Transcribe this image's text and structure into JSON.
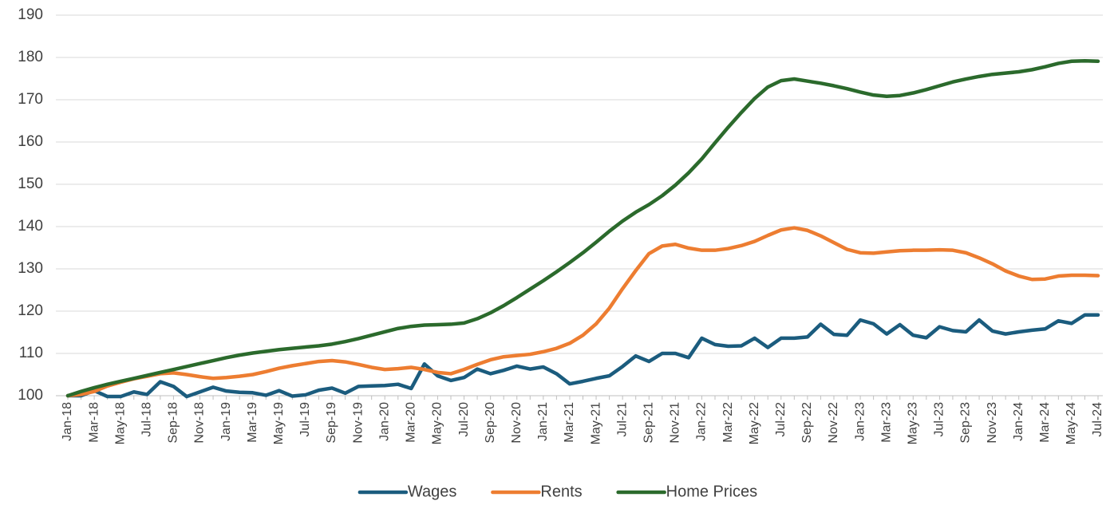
{
  "chart_data": {
    "type": "line",
    "categories": [
      "Jan-18",
      null,
      "Mar-18",
      null,
      "May-18",
      null,
      "Jul-18",
      null,
      "Sep-18",
      null,
      "Nov-18",
      null,
      "Jan-19",
      null,
      "Mar-19",
      null,
      "May-19",
      null,
      "Jul-19",
      null,
      "Sep-19",
      null,
      "Nov-19",
      null,
      "Jan-20",
      null,
      "Mar-20",
      null,
      "May-20",
      null,
      "Jul-20",
      null,
      "Sep-20",
      null,
      "Nov-20",
      null,
      "Jan-21",
      null,
      "Mar-21",
      null,
      "May-21",
      null,
      "Jul-21",
      null,
      "Sep-21",
      null,
      "Nov-21",
      null,
      "Jan-22",
      null,
      "Mar-22",
      null,
      "May-22",
      null,
      "Jul-22",
      null,
      "Sep-22",
      null,
      "Nov-22",
      null,
      "Jan-23",
      null,
      "Mar-23",
      null,
      "May-23",
      null,
      "Jul-23",
      null,
      "Sep-23",
      null,
      "Nov-23",
      null,
      "Jan-24",
      null,
      "Mar-24",
      null,
      "May-24",
      null,
      "Jul-24"
    ],
    "series": [
      {
        "name": "Wages",
        "color": "#1b5c7e",
        "values": [
          100,
          100,
          101.2,
          99.8,
          99.8,
          100.9,
          100.3,
          103.3,
          102.2,
          99.8,
          100.9,
          102,
          101.1,
          100.8,
          100.7,
          100.1,
          101.2,
          99.9,
          100.2,
          101.3,
          101.8,
          100.6,
          102.2,
          102.3,
          102.4,
          102.7,
          101.7,
          107.5,
          104.7,
          103.6,
          104.3,
          106.3,
          105.2,
          106,
          107,
          106.3,
          106.8,
          105.2,
          102.8,
          103.4,
          104.1,
          104.7,
          106.9,
          109.4,
          108.1,
          110,
          110,
          109,
          113.6,
          112.1,
          111.7,
          111.8,
          113.6,
          111.4,
          113.6,
          113.6,
          113.9,
          116.9,
          114.5,
          114.3,
          117.9,
          117,
          114.6,
          116.8,
          114.3,
          113.7,
          116.3,
          115.4,
          115.1,
          117.9,
          115.3,
          114.6,
          115.1,
          115.5,
          115.8,
          117.7,
          117.1,
          119.1,
          119.1
        ]
      },
      {
        "name": "Rents",
        "color": "#ed7d31",
        "values": [
          100,
          100.3,
          101,
          102.3,
          103.2,
          104,
          104.6,
          105.2,
          105.4,
          105,
          104.5,
          104.1,
          104.3,
          104.6,
          105,
          105.7,
          106.5,
          107.1,
          107.6,
          108.1,
          108.3,
          108,
          107.4,
          106.7,
          106.2,
          106.4,
          106.7,
          106.2,
          105.5,
          105.2,
          106.2,
          107.4,
          108.5,
          109.2,
          109.5,
          109.8,
          110.4,
          111.2,
          112.4,
          114.3,
          117,
          120.7,
          125.3,
          129.6,
          133.6,
          135.4,
          135.8,
          134.9,
          134.4,
          134.4,
          134.8,
          135.5,
          136.5,
          137.9,
          139.2,
          139.7,
          139.1,
          137.8,
          136.2,
          134.6,
          133.8,
          133.7,
          134,
          134.3,
          134.4,
          134.4,
          134.5,
          134.4,
          133.8,
          132.6,
          131.2,
          129.5,
          128.3,
          127.5,
          127.6,
          128.3,
          128.5,
          128.5,
          128.4
        ]
      },
      {
        "name": "Home Prices",
        "color": "#2b6a2c",
        "values": [
          100,
          101,
          101.9,
          102.7,
          103.4,
          104.1,
          104.8,
          105.5,
          106.2,
          106.9,
          107.6,
          108.3,
          109,
          109.6,
          110.1,
          110.5,
          110.9,
          111.2,
          111.5,
          111.8,
          112.2,
          112.8,
          113.5,
          114.3,
          115.1,
          115.9,
          116.4,
          116.7,
          116.8,
          116.9,
          117.2,
          118.2,
          119.6,
          121.3,
          123.2,
          125.2,
          127.2,
          129.3,
          131.5,
          133.8,
          136.3,
          138.9,
          141.3,
          143.4,
          145.2,
          147.3,
          149.8,
          152.7,
          156,
          159.8,
          163.5,
          167,
          170.3,
          173,
          174.5,
          174.9,
          174.4,
          173.9,
          173.3,
          172.6,
          171.8,
          171.1,
          170.8,
          171,
          171.6,
          172.4,
          173.3,
          174.2,
          174.9,
          175.5,
          176,
          176.3,
          176.6,
          177.1,
          177.8,
          178.6,
          179.1,
          179.2,
          179.1
        ]
      }
    ],
    "ylim": [
      100,
      190
    ],
    "yticks": [
      100,
      110,
      120,
      130,
      140,
      150,
      160,
      170,
      180,
      190
    ],
    "grid": true,
    "legend": "bottom"
  }
}
